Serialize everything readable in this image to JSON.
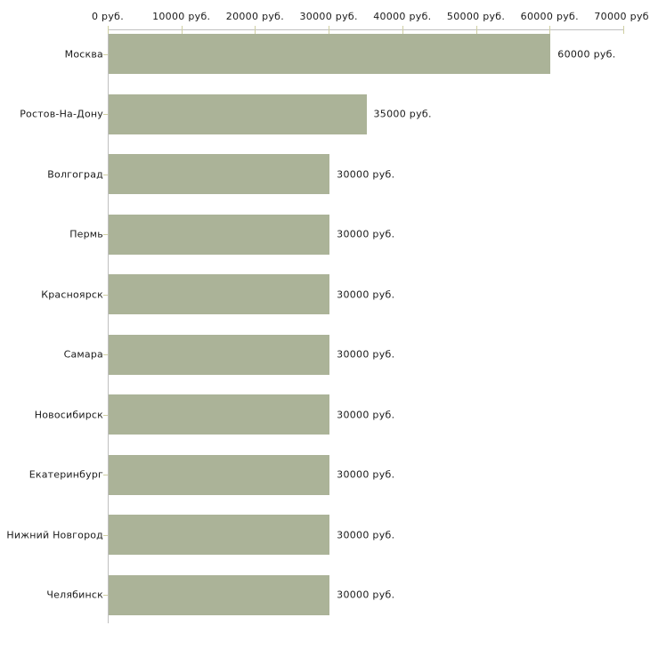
{
  "chart_data": {
    "type": "bar",
    "orientation": "horizontal",
    "title": "",
    "xlabel": "",
    "ylabel": "",
    "grid": false,
    "legend": false,
    "xlim": [
      0,
      70000
    ],
    "x_ticks": [
      0,
      10000,
      20000,
      30000,
      40000,
      50000,
      60000,
      70000
    ],
    "x_tick_labels": [
      "0 руб.",
      "10000 руб.",
      "20000 руб.",
      "30000 руб.",
      "40000 руб.",
      "50000 руб.",
      "60000 руб.",
      "70000 руб."
    ],
    "categories": [
      "Москва",
      "Ростов-На-Дону",
      "Волгоград",
      "Пермь",
      "Красноярск",
      "Самара",
      "Новосибирск",
      "Екатеринбург",
      "Нижний Новгород",
      "Челябинск"
    ],
    "values": [
      60000,
      35000,
      30000,
      30000,
      30000,
      30000,
      30000,
      30000,
      30000,
      30000
    ],
    "value_labels": [
      "60000 руб.",
      "35000 руб.",
      "30000 руб.",
      "30000 руб.",
      "30000 руб.",
      "30000 руб.",
      "30000 руб.",
      "30000 руб.",
      "30000 руб.",
      "30000 руб."
    ],
    "colors": {
      "bar": "#abb398",
      "axis_line": "#c0c0c0",
      "tick_mark": "#cfcfa2",
      "text": "#1a1a1a",
      "background": "#ffffff"
    }
  }
}
